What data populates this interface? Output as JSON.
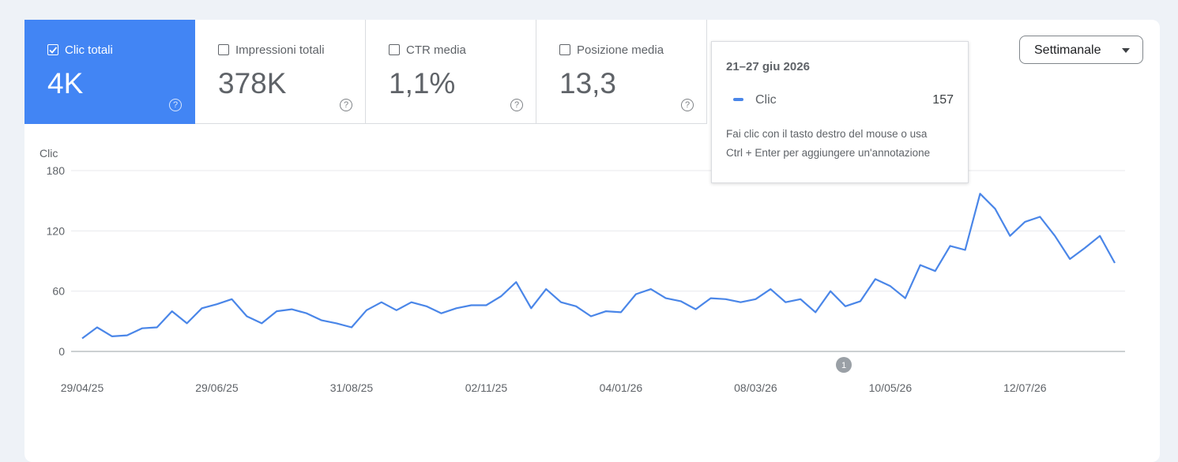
{
  "metrics": [
    {
      "label": "Clic totali",
      "value": "4K",
      "selected": true
    },
    {
      "label": "Impressioni totali",
      "value": "378K",
      "selected": false
    },
    {
      "label": "CTR media",
      "value": "1,1%",
      "selected": false
    },
    {
      "label": "Posizione media",
      "value": "13,3",
      "selected": false
    }
  ],
  "dropdown": "Settimanale",
  "tooltip": {
    "title": "21–27 giu 2026",
    "note": [
      "Fai clic con il tasto destro del mouse o usa",
      "Ctrl + Enter per aggiungere un'annotazione"
    ]
  },
  "annotation": "1",
  "chart_data": {
    "type": "line",
    "y_label": "Clic",
    "categories": [
      "29/04/25",
      null,
      null,
      null,
      null,
      null,
      null,
      null,
      null,
      "29/06/25",
      null,
      null,
      null,
      null,
      null,
      null,
      null,
      null,
      "31/08/25",
      null,
      null,
      null,
      null,
      null,
      null,
      null,
      null,
      "02/11/25",
      null,
      null,
      null,
      null,
      null,
      null,
      null,
      null,
      "04/01/26",
      null,
      null,
      null,
      null,
      null,
      null,
      null,
      null,
      "08/03/26",
      null,
      null,
      null,
      null,
      null,
      null,
      null,
      null,
      "10/05/26",
      null,
      null,
      null,
      null,
      null,
      null,
      null,
      null,
      "12/07/26",
      null,
      null,
      null,
      null,
      null,
      null
    ],
    "series": [
      {
        "name": "Clic",
        "color": "#4a86e8",
        "values": [
          13,
          24,
          15,
          16,
          23,
          24,
          40,
          28,
          43,
          47,
          52,
          35,
          28,
          40,
          42,
          38,
          31,
          28,
          24,
          41,
          49,
          41,
          49,
          45,
          38,
          43,
          46,
          46,
          55,
          69,
          43,
          62,
          49,
          45,
          35,
          40,
          39,
          57,
          62,
          53,
          50,
          42,
          53,
          52,
          49,
          52,
          62,
          49,
          52,
          39,
          60,
          45,
          50,
          72,
          65,
          53,
          86,
          80,
          105,
          101,
          157,
          142,
          115,
          129,
          134,
          115,
          92,
          103,
          115,
          88
        ]
      }
    ],
    "ylim": [
      0,
      180
    ],
    "yticks": [
      0,
      60,
      120,
      180
    ],
    "grid": true
  }
}
